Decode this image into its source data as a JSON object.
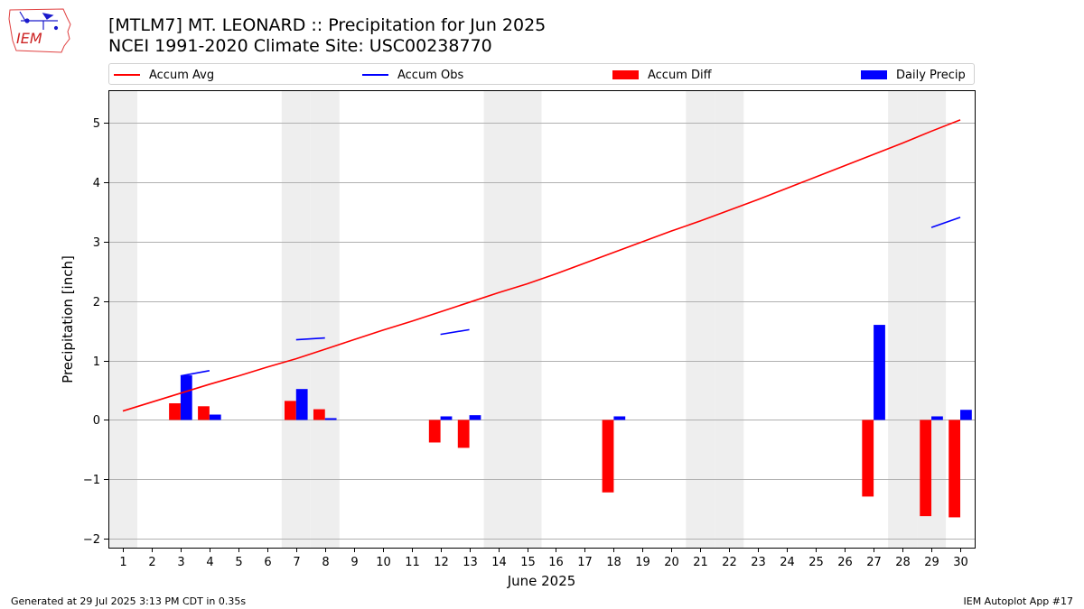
{
  "title_line1": "[MTLM7] MT. LEONARD :: Precipitation for Jun 2025",
  "title_line2": "NCEI 1991-2020 Climate Site: USC00238770",
  "logo_text": "IEM",
  "footer_left": "Generated at 29 Jul 2025 3:13 PM CDT in 0.35s",
  "footer_right": "IEM Autoplot App #17",
  "legend": [
    {
      "label": "Accum Avg",
      "kind": "line",
      "color": "#ff0000"
    },
    {
      "label": "Accum Obs",
      "kind": "line",
      "color": "#0000ff"
    },
    {
      "label": "Accum Diff",
      "kind": "box",
      "color": "#ff0000"
    },
    {
      "label": "Daily Precip",
      "kind": "box",
      "color": "#0000ff"
    }
  ],
  "chart_data": {
    "type": "bar",
    "xlabel": "June 2025",
    "ylabel": "Precipitation [inch]",
    "xlim": [
      0.5,
      30.5
    ],
    "ylim": [
      -2.15,
      5.55
    ],
    "yticks": [
      -2,
      -1,
      0,
      1,
      2,
      3,
      4,
      5
    ],
    "x": [
      1,
      2,
      3,
      4,
      5,
      6,
      7,
      8,
      9,
      10,
      11,
      12,
      13,
      14,
      15,
      16,
      17,
      18,
      19,
      20,
      21,
      22,
      23,
      24,
      25,
      26,
      27,
      28,
      29,
      30
    ],
    "weekend_days": [
      1,
      7,
      8,
      14,
      15,
      21,
      22,
      28,
      29
    ],
    "grid": true,
    "colors": {
      "accum_avg": "#ff0000",
      "accum_obs": "#0000ff",
      "accum_diff": "#ff0000",
      "daily_precip": "#0000ff",
      "weekend_band": "#eeeeee"
    },
    "series": [
      {
        "name": "Accum Avg",
        "type": "line",
        "values": [
          0.15,
          0.3,
          0.45,
          0.6,
          0.74,
          0.89,
          1.03,
          1.19,
          1.35,
          1.51,
          1.66,
          1.82,
          1.98,
          2.14,
          2.29,
          2.46,
          2.64,
          2.82,
          3.0,
          3.18,
          3.35,
          3.53,
          3.71,
          3.9,
          4.09,
          4.28,
          4.47,
          4.66,
          4.86,
          5.05
        ]
      },
      {
        "name": "Accum Obs",
        "type": "line",
        "values": [
          null,
          null,
          0.74,
          0.83,
          null,
          null,
          1.35,
          1.38,
          null,
          null,
          null,
          1.44,
          1.52,
          null,
          null,
          null,
          null,
          null,
          null,
          null,
          null,
          null,
          null,
          null,
          null,
          null,
          null,
          null,
          3.24,
          3.41
        ]
      },
      {
        "name": "Accum Diff",
        "type": "bar",
        "values": [
          null,
          null,
          0.28,
          0.23,
          null,
          null,
          0.32,
          0.18,
          null,
          null,
          null,
          -0.38,
          -0.47,
          null,
          null,
          null,
          null,
          -1.22,
          null,
          null,
          null,
          null,
          null,
          null,
          null,
          null,
          -1.29,
          null,
          -1.62,
          -1.64
        ]
      },
      {
        "name": "Daily Precip",
        "type": "bar",
        "values": [
          null,
          null,
          0.75,
          0.09,
          null,
          null,
          0.52,
          0.03,
          null,
          null,
          null,
          0.06,
          0.08,
          null,
          null,
          null,
          null,
          0.06,
          null,
          null,
          null,
          null,
          null,
          null,
          null,
          null,
          1.6,
          null,
          0.06,
          0.17
        ]
      }
    ]
  }
}
